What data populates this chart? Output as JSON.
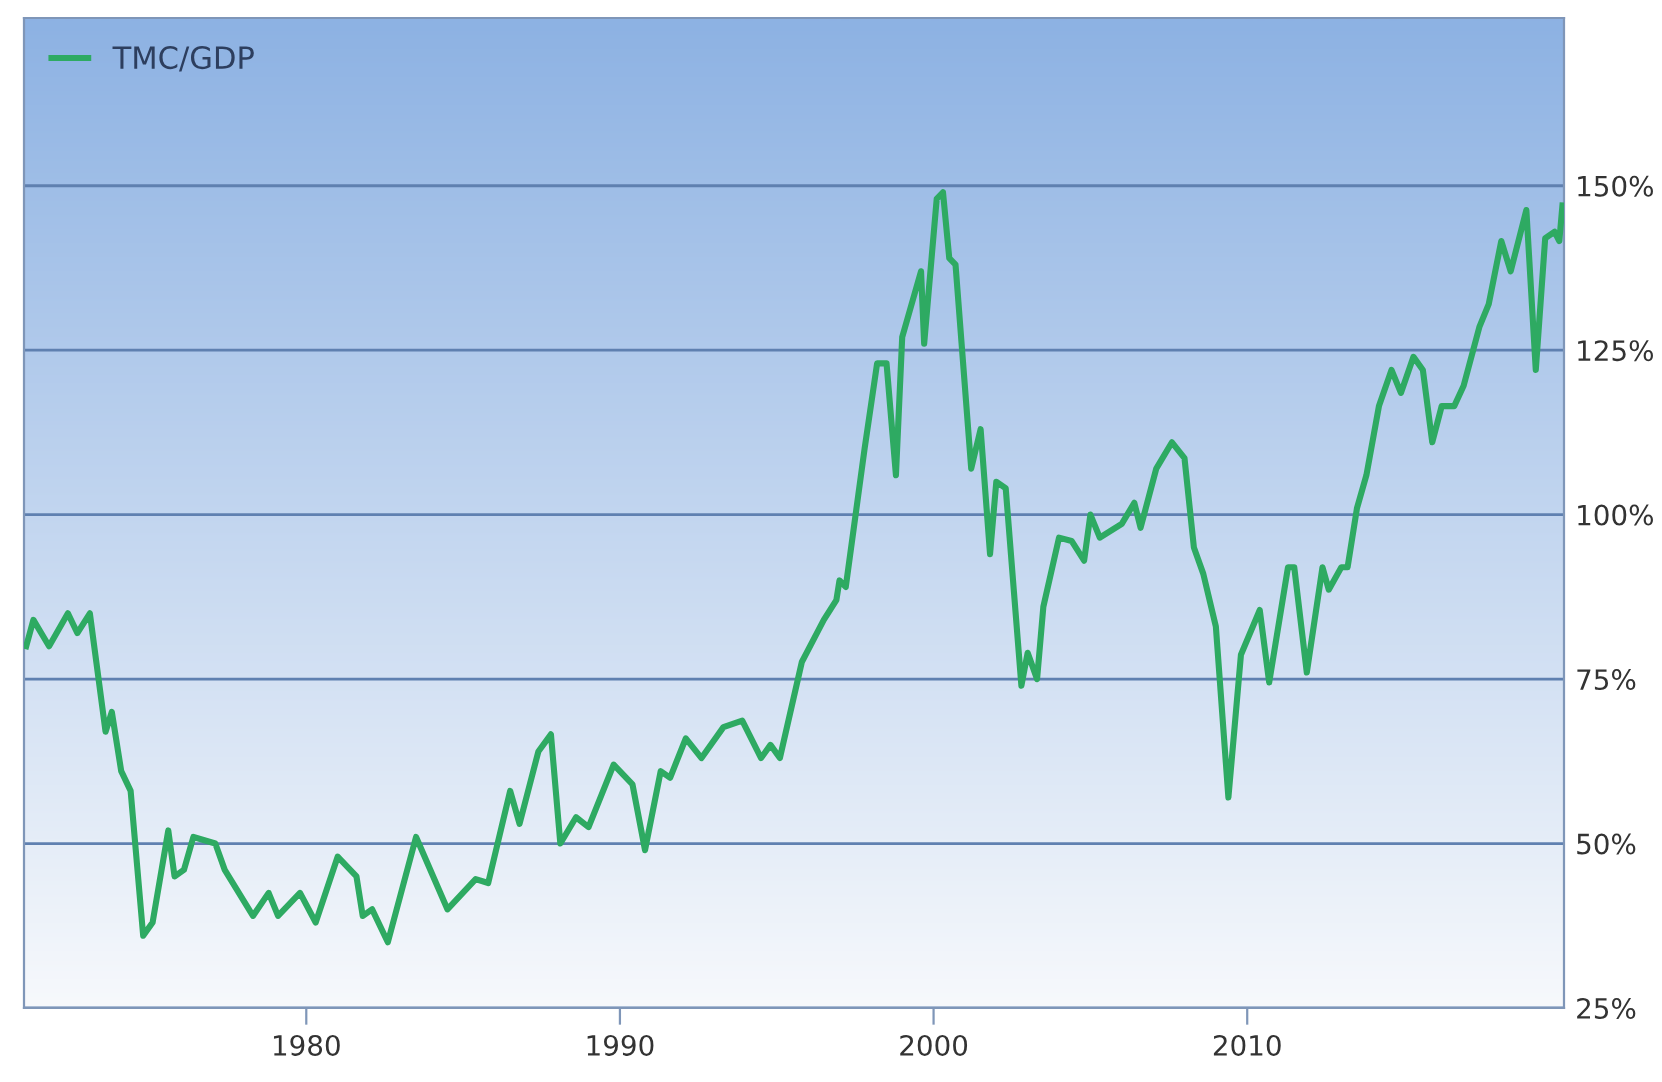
{
  "chart_data": {
    "type": "line",
    "xlim": [
      1971,
      2020.1
    ],
    "xticks": [
      1980,
      1990,
      2000,
      2010
    ],
    "ylim": [
      25,
      175.5
    ],
    "yticks": [
      {
        "value": 25,
        "label": "25%"
      },
      {
        "value": 50,
        "label": "50%"
      },
      {
        "value": 75,
        "label": "75%"
      },
      {
        "value": 100,
        "label": "100%"
      },
      {
        "value": 125,
        "label": "125%"
      },
      {
        "value": 150,
        "label": "150%"
      }
    ],
    "grid": "y",
    "legend": "top left",
    "marker": "none",
    "line_style": "solid",
    "series": [
      {
        "name": "TMC/GDP",
        "color": "#2eaa62",
        "x": [
          1971.07,
          1971.3,
          1971.8,
          1972.4,
          1972.7,
          1973.1,
          1973.6,
          1973.8,
          1974.1,
          1974.4,
          1974.8,
          1975.1,
          1975.6,
          1975.8,
          1976.1,
          1976.4,
          1977.1,
          1977.4,
          1978.3,
          1978.8,
          1979.1,
          1979.8,
          1980.3,
          1981.0,
          1981.6,
          1981.8,
          1982.1,
          1982.6,
          1983.5,
          1984.5,
          1985.4,
          1985.8,
          1986.5,
          1986.8,
          1987.4,
          1987.8,
          1988.1,
          1988.6,
          1989.0,
          1989.8,
          1990.4,
          1990.8,
          1991.3,
          1991.6,
          1992.1,
          1992.6,
          1993.3,
          1993.9,
          1994.5,
          1994.8,
          1995.1,
          1995.8,
          1996.5,
          1996.9,
          1997.0,
          1997.2,
          1997.6,
          1997.8,
          1998.2,
          1998.5,
          1998.8,
          1999.0,
          1999.6,
          1999.7,
          2000.1,
          2000.3,
          2000.5,
          2000.7,
          2001.2,
          2001.5,
          2001.8,
          2002.0,
          2002.3,
          2002.8,
          2003.0,
          2003.3,
          2003.5,
          2004.0,
          2004.4,
          2004.8,
          2005.0,
          2005.3,
          2006.0,
          2006.4,
          2006.6,
          2007.1,
          2007.6,
          2008.0,
          2008.3,
          2008.6,
          2009.0,
          2009.4,
          2009.8,
          2010.4,
          2010.7,
          2011.3,
          2011.5,
          2011.9,
          2012.4,
          2012.6,
          2013.0,
          2013.2,
          2013.5,
          2013.8,
          2014.2,
          2014.6,
          2014.9,
          2015.3,
          2015.6,
          2015.9,
          2016.2,
          2016.6,
          2016.9,
          2017.4,
          2017.7,
          2018.1,
          2018.4,
          2018.9,
          2019.2,
          2019.5,
          2019.8,
          2019.95,
          2020.05
        ],
        "values": [
          80,
          84,
          80,
          85,
          82,
          85,
          67,
          70,
          61,
          58,
          36,
          38,
          52,
          45,
          46,
          51,
          50,
          46,
          39,
          42.5,
          39,
          42.5,
          38,
          48,
          45,
          39,
          40,
          35,
          51,
          40,
          44.6,
          44,
          58,
          53,
          64,
          66.6,
          50,
          54,
          52.5,
          62,
          59,
          49,
          61,
          60,
          66,
          63,
          67.7,
          68.7,
          63,
          65,
          63,
          77.6,
          84,
          87,
          90,
          89,
          103,
          110,
          123,
          123,
          106,
          127,
          137,
          126,
          148,
          149,
          139,
          138,
          107,
          113,
          94,
          105,
          104,
          74,
          79,
          75,
          86,
          96.5,
          96,
          93,
          100,
          96.5,
          98.6,
          101.8,
          98,
          107,
          111,
          108.6,
          95,
          91,
          83,
          57,
          78.7,
          85.5,
          74.5,
          92,
          92,
          76,
          92,
          88.6,
          92,
          92,
          101,
          106,
          116.5,
          122,
          118.5,
          124,
          122,
          111,
          116.5,
          116.5,
          119.6,
          128.5,
          132,
          141.6,
          137,
          146.3,
          122,
          142,
          143,
          141.6,
          147
        ]
      }
    ]
  }
}
